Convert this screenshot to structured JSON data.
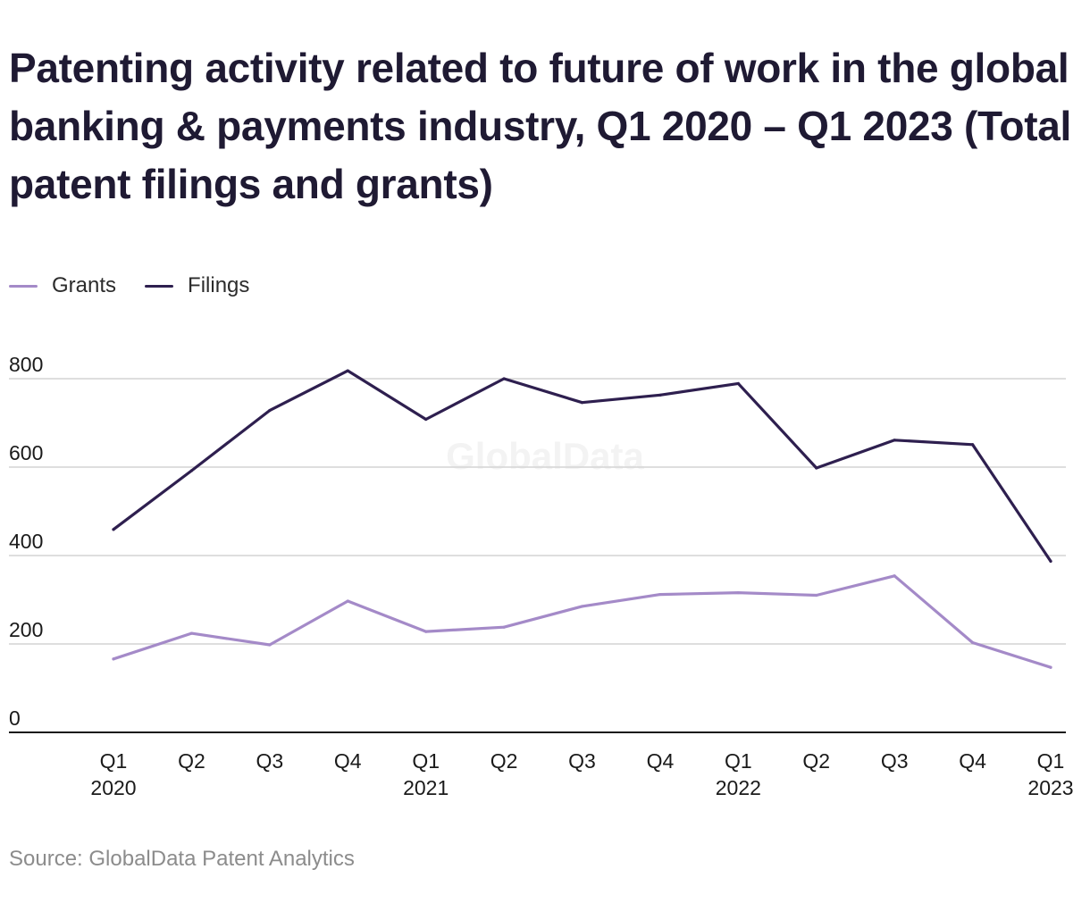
{
  "title": "Patenting activity related to future of work in the global banking & payments industry, Q1 2020 – Q1 2023 (Total patent filings and grants)",
  "source": "Source: GlobalData Patent Analytics",
  "watermark": "GlobalData",
  "colors": {
    "grants": "#a48ac8",
    "filings": "#2e1f4f",
    "grid": "#d4d4d4",
    "axis": "#1a1a1a"
  },
  "chart_data": {
    "type": "line",
    "categories": [
      [
        "Q1",
        "2020"
      ],
      [
        "Q2",
        ""
      ],
      [
        "Q3",
        ""
      ],
      [
        "Q4",
        ""
      ],
      [
        "Q1",
        "2021"
      ],
      [
        "Q2",
        ""
      ],
      [
        "Q3",
        ""
      ],
      [
        "Q4",
        ""
      ],
      [
        "Q1",
        "2022"
      ],
      [
        "Q2",
        ""
      ],
      [
        "Q3",
        ""
      ],
      [
        "Q4",
        ""
      ],
      [
        "Q1",
        "2023"
      ]
    ],
    "series": [
      {
        "name": "Grants",
        "values": [
          166,
          224,
          198,
          297,
          228,
          238,
          285,
          312,
          316,
          310,
          354,
          203,
          147
        ]
      },
      {
        "name": "Filings",
        "values": [
          459,
          592,
          728,
          818,
          708,
          800,
          746,
          763,
          789,
          598,
          661,
          651,
          387
        ]
      }
    ],
    "yticks": [
      0,
      200,
      400,
      600,
      800
    ],
    "ylim": [
      0,
      800
    ],
    "grid": true,
    "legend": "top-left"
  }
}
